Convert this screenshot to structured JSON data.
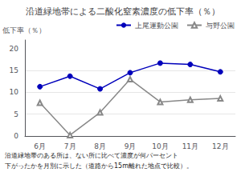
{
  "chart_data": {
    "type": "line",
    "title": "沿道緑地帯による二酸化窒素濃度の低下率（％）",
    "ylabel": "低下率（％）",
    "categories": [
      "6月",
      "7月",
      "8月",
      "9月",
      "10月",
      "11月",
      "12月"
    ],
    "series": [
      {
        "name": "上尾運動公園",
        "color": "#0000BB",
        "marker": "circle",
        "values": [
          11.3,
          13.7,
          10.8,
          14.5,
          16.7,
          16.4,
          14.7
        ]
      },
      {
        "name": "与野公園",
        "color": "#888888",
        "marker": "open_triangle",
        "values": [
          7.6,
          0.2,
          5.4,
          13.0,
          7.8,
          8.3,
          8.6
        ]
      }
    ],
    "ylim": [
      0,
      22
    ],
    "yticks": [
      0,
      5,
      10,
      15,
      20
    ],
    "grid": true,
    "legend": "upper right",
    "annotations": [
      "沿道緑地帯のある所は、ない所に比べて濃度が何パーセント",
      "下がったかを月別に示した（道路から15m離れた地点で比較）。"
    ]
  }
}
